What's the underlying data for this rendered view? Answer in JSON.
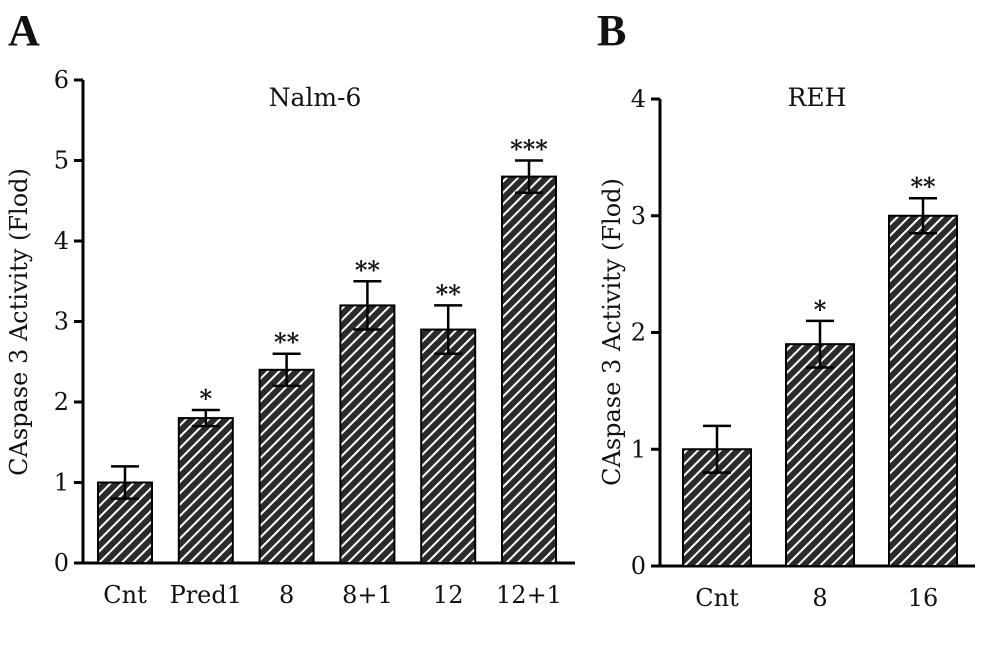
{
  "panels": [
    "A",
    "B"
  ],
  "chart_data": [
    {
      "type": "bar",
      "panel": "A",
      "title": "Nalm-6",
      "ylabel": "CAspase 3 Activity (Flod)",
      "xlabel": "",
      "ylim": [
        0,
        6
      ],
      "yticks": [
        0,
        1,
        2,
        3,
        4,
        5,
        6
      ],
      "categories": [
        "Cnt",
        "Pred1",
        "8",
        "8+1",
        "12",
        "12+1"
      ],
      "values": [
        1.0,
        1.8,
        2.4,
        3.2,
        2.9,
        4.8
      ],
      "errors": [
        0.2,
        0.1,
        0.2,
        0.3,
        0.3,
        0.2
      ],
      "significance": [
        "",
        "*",
        "**",
        "**",
        "**",
        "***"
      ],
      "bar_pattern": "diagonal-hatch",
      "grid": false
    },
    {
      "type": "bar",
      "panel": "B",
      "title": "REH",
      "ylabel": "CAspase 3 Activity (Flod)",
      "xlabel": "",
      "ylim": [
        0,
        4
      ],
      "yticks": [
        0,
        1,
        2,
        3,
        4
      ],
      "categories": [
        "Cnt",
        "8",
        "16"
      ],
      "values": [
        1.0,
        1.9,
        3.0
      ],
      "errors": [
        0.2,
        0.2,
        0.15
      ],
      "significance": [
        "",
        "*",
        "**"
      ],
      "bar_pattern": "diagonal-hatch",
      "grid": false
    }
  ],
  "colors": {
    "bar_fill": "#2b2b2b",
    "hatch": "#ffffff",
    "axis": "#000000"
  }
}
